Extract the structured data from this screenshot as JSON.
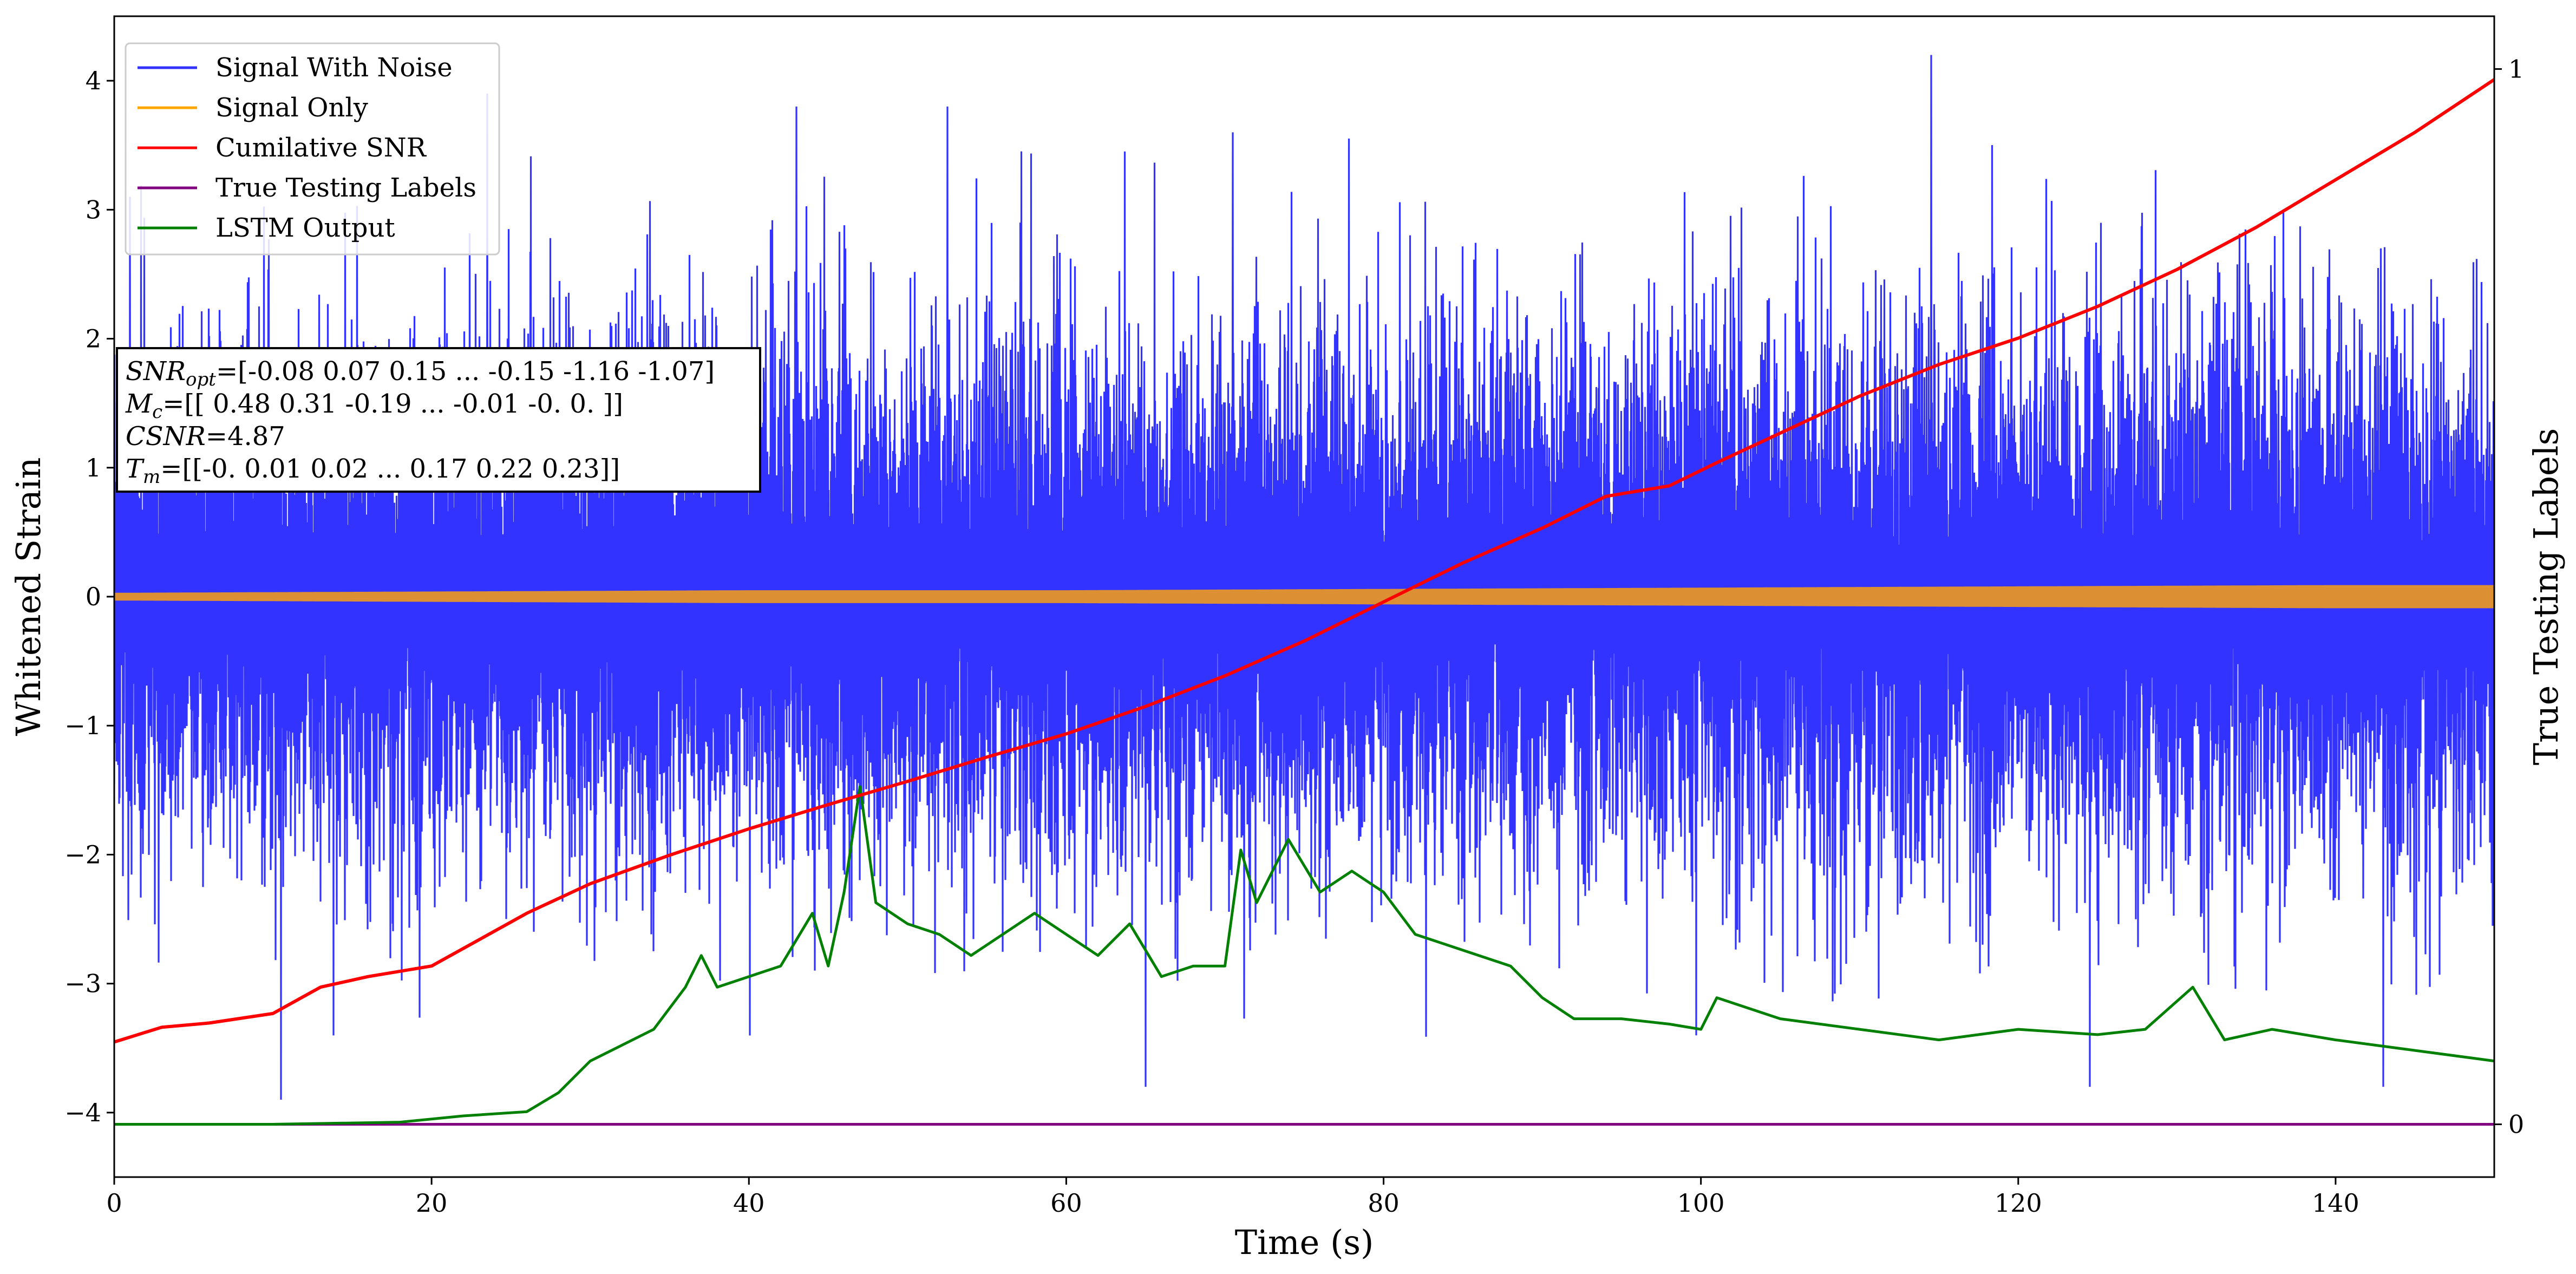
{
  "chart_data": {
    "type": "line",
    "xlabel": "Time (s)",
    "ylabel": "Whitened Strain",
    "y2label": "True Testing Labels",
    "xlim": [
      0,
      150
    ],
    "ylim": [
      -4.5,
      4.5
    ],
    "y2lim": [
      -0.05,
      1.05
    ],
    "xticks": [
      0,
      20,
      40,
      60,
      80,
      100,
      120,
      140
    ],
    "yticks": [
      -4,
      -3,
      -2,
      -1,
      0,
      1,
      2,
      3,
      4
    ],
    "y2ticks": [
      0,
      1
    ],
    "legend_position": "upper-left",
    "legend": [
      {
        "label": "Signal With Noise",
        "color": "#3333ff"
      },
      {
        "label": "Signal Only",
        "color": "#ffa500"
      },
      {
        "label": "Cumilative SNR",
        "color": "#ff0000"
      },
      {
        "label": "True Testing Labels",
        "color": "#800080"
      },
      {
        "label": "LSTM Output",
        "color": "#008000"
      }
    ],
    "annotation": {
      "snr_opt_var": "SNR",
      "snr_opt_sub": "opt",
      "snr_opt_value": "=[-0.08  0.07  0.15 ... -0.15 -1.16 -1.07]",
      "mc_var": "M",
      "mc_sub": "c",
      "mc_value": "=[[ 0.48  0.31 -0.19 ... -0.01 -0.    0.  ]]",
      "csnr_var": "CSNR",
      "csnr_value": "=4.87",
      "tm_var": "T",
      "tm_sub": "m",
      "tm_value": "=[[-0.    0.01  0.02 ...  0.17  0.22  0.23]]"
    },
    "series": [
      {
        "name": "Signal With Noise",
        "axis": "left",
        "color": "#3333ff",
        "envelope": {
          "x": [
            0,
            10,
            20,
            30,
            40,
            50,
            60,
            70,
            80,
            90,
            100,
            110,
            120,
            130,
            140,
            150
          ],
          "upper_typical": [
            2.2,
            2.3,
            2.4,
            2.4,
            2.5,
            2.5,
            2.5,
            2.5,
            2.5,
            2.5,
            2.6,
            2.6,
            2.6,
            2.6,
            2.6,
            2.4
          ],
          "lower_typical": [
            -2.2,
            -2.3,
            -2.4,
            -2.4,
            -2.5,
            -2.5,
            -2.5,
            -2.5,
            -2.5,
            -2.5,
            -2.6,
            -2.6,
            -2.6,
            -2.6,
            -2.6,
            -2.4
          ]
        },
        "peaks": [
          {
            "x": 1.0,
            "y": 3.1
          },
          {
            "x": 10.5,
            "y": -3.9
          },
          {
            "x": 23.5,
            "y": 3.9
          },
          {
            "x": 43.0,
            "y": 3.8
          },
          {
            "x": 52.5,
            "y": 3.8
          },
          {
            "x": 65.0,
            "y": -3.8
          },
          {
            "x": 70.5,
            "y": 3.6
          },
          {
            "x": 114.5,
            "y": 4.2
          },
          {
            "x": 124.5,
            "y": -3.8
          },
          {
            "x": 143.0,
            "y": -3.8
          }
        ]
      },
      {
        "name": "Signal Only",
        "axis": "left",
        "color": "#ffa500",
        "envelope": {
          "x": [
            0,
            20,
            40,
            60,
            80,
            100,
            120,
            140,
            150
          ],
          "amplitude": [
            0.03,
            0.04,
            0.05,
            0.05,
            0.06,
            0.07,
            0.08,
            0.09,
            0.09
          ]
        }
      },
      {
        "name": "Cumilative SNR",
        "axis": "right",
        "color": "#ff0000",
        "x": [
          0,
          3,
          6,
          10,
          13,
          16,
          20,
          23,
          26,
          30,
          35,
          40,
          45,
          50,
          55,
          60,
          65,
          70,
          75,
          80,
          85,
          90,
          94,
          98,
          101,
          105,
          110,
          115,
          120,
          125,
          130,
          135,
          140,
          145,
          150
        ],
        "y": [
          0.078,
          0.092,
          0.096,
          0.105,
          0.13,
          0.14,
          0.15,
          0.175,
          0.2,
          0.228,
          0.255,
          0.28,
          0.303,
          0.325,
          0.348,
          0.37,
          0.396,
          0.425,
          0.458,
          0.495,
          0.532,
          0.565,
          0.595,
          0.605,
          0.627,
          0.655,
          0.69,
          0.72,
          0.745,
          0.775,
          0.81,
          0.85,
          0.895,
          0.94,
          0.99
        ]
      },
      {
        "name": "True Testing Labels",
        "axis": "right",
        "color": "#800080",
        "x": [
          0,
          150
        ],
        "y": [
          0,
          0
        ]
      },
      {
        "name": "LSTM Output",
        "axis": "right",
        "color": "#008000",
        "x": [
          0,
          10,
          18,
          22,
          26,
          28,
          30,
          32,
          34,
          36,
          37,
          38,
          40,
          42,
          44,
          45,
          46,
          47,
          48,
          50,
          52,
          54,
          56,
          58,
          60,
          62,
          64,
          66,
          68,
          70,
          71,
          72,
          74,
          76,
          78,
          80,
          82,
          84,
          86,
          88,
          90,
          92,
          95,
          98,
          100,
          101,
          105,
          110,
          115,
          120,
          125,
          128,
          131,
          133,
          136,
          140,
          145,
          150
        ],
        "y": [
          0,
          0,
          0.002,
          0.008,
          0.012,
          0.03,
          0.06,
          0.075,
          0.09,
          0.13,
          0.16,
          0.13,
          0.14,
          0.15,
          0.2,
          0.15,
          0.22,
          0.32,
          0.21,
          0.19,
          0.18,
          0.16,
          0.18,
          0.2,
          0.18,
          0.16,
          0.19,
          0.14,
          0.15,
          0.15,
          0.26,
          0.21,
          0.27,
          0.22,
          0.24,
          0.22,
          0.18,
          0.17,
          0.16,
          0.15,
          0.12,
          0.1,
          0.1,
          0.095,
          0.09,
          0.12,
          0.1,
          0.09,
          0.08,
          0.09,
          0.085,
          0.09,
          0.13,
          0.08,
          0.09,
          0.08,
          0.07,
          0.06
        ]
      }
    ]
  }
}
